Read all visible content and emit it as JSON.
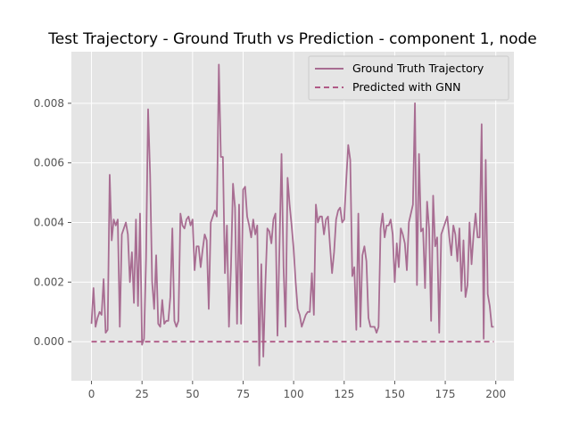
{
  "chart_data": {
    "type": "line",
    "title": "Test Trajectory - Ground Truth vs Prediction - component 1, node",
    "xlabel": "",
    "ylabel": "",
    "xlim": [
      -9.95,
      208.95
    ],
    "ylim": [
      -0.00131,
      0.00973
    ],
    "xticks": [
      0,
      25,
      50,
      75,
      100,
      125,
      150,
      175,
      200
    ],
    "xtick_labels": [
      "0",
      "25",
      "50",
      "75",
      "100",
      "125",
      "150",
      "175",
      "200"
    ],
    "yticks": [
      0,
      0.002,
      0.004,
      0.006,
      0.008
    ],
    "ytick_labels": [
      "0.000",
      "0.002",
      "0.004",
      "0.006",
      "0.008"
    ],
    "grid": true,
    "legend_position": "upper right",
    "colors": {
      "ground_truth": "#a86d92",
      "prediction": "#b05a86",
      "background": "#e5e5e5",
      "grid": "#ffffff"
    },
    "series": [
      {
        "name": "Ground Truth Trajectory",
        "style": "solid",
        "x": [
          0,
          1,
          2,
          3,
          4,
          5,
          6,
          7,
          8,
          9,
          10,
          11,
          12,
          13,
          14,
          15,
          16,
          17,
          18,
          19,
          20,
          21,
          22,
          23,
          24,
          25,
          26,
          27,
          28,
          29,
          30,
          31,
          32,
          33,
          34,
          35,
          36,
          37,
          38,
          39,
          40,
          41,
          42,
          43,
          44,
          45,
          46,
          47,
          48,
          49,
          50,
          51,
          52,
          53,
          54,
          55,
          56,
          57,
          58,
          59,
          60,
          61,
          62,
          63,
          64,
          65,
          66,
          67,
          68,
          69,
          70,
          71,
          72,
          73,
          74,
          75,
          76,
          77,
          78,
          79,
          80,
          81,
          82,
          83,
          84,
          85,
          86,
          87,
          88,
          89,
          90,
          91,
          92,
          93,
          94,
          95,
          96,
          97,
          98,
          99,
          100,
          101,
          102,
          103,
          104,
          105,
          106,
          107,
          108,
          109,
          110,
          111,
          112,
          113,
          114,
          115,
          116,
          117,
          118,
          119,
          120,
          121,
          122,
          123,
          124,
          125,
          126,
          127,
          128,
          129,
          130,
          131,
          132,
          133,
          134,
          135,
          136,
          137,
          138,
          139,
          140,
          141,
          142,
          143,
          144,
          145,
          146,
          147,
          148,
          149,
          150,
          151,
          152,
          153,
          154,
          155,
          156,
          157,
          158,
          159,
          160,
          161,
          162,
          163,
          164,
          165,
          166,
          167,
          168,
          169,
          170,
          171,
          172,
          173,
          174,
          175,
          176,
          177,
          178,
          179,
          180,
          181,
          182,
          183,
          184,
          185,
          186,
          187,
          188,
          189,
          190,
          191,
          192,
          193,
          194,
          195,
          196,
          197,
          198,
          199
        ],
        "values": [
          0.0006,
          0.0018,
          0.0005,
          0.0008,
          0.001,
          0.0009,
          0.0021,
          0.0003,
          0.0004,
          0.0056,
          0.0034,
          0.0041,
          0.0039,
          0.0041,
          0.0005,
          0.0036,
          0.0038,
          0.004,
          0.0036,
          0.002,
          0.003,
          0.0013,
          0.0041,
          0.0012,
          0.0043,
          -0.0001,
          0.0001,
          0.0028,
          0.0078,
          0.0056,
          0.002,
          0.0011,
          0.0029,
          0.0006,
          0.0005,
          0.0014,
          0.0006,
          0.0007,
          0.0007,
          0.0015,
          0.0038,
          0.0007,
          0.0005,
          0.0007,
          0.0043,
          0.0039,
          0.0038,
          0.0041,
          0.0042,
          0.0039,
          0.0041,
          0.0024,
          0.0032,
          0.0032,
          0.0025,
          0.0031,
          0.0036,
          0.0034,
          0.0011,
          0.004,
          0.0042,
          0.0044,
          0.0042,
          0.0093,
          0.0062,
          0.0062,
          0.0023,
          0.0039,
          0.0005,
          0.0025,
          0.0053,
          0.0045,
          0.0006,
          0.0046,
          0.0006,
          0.0051,
          0.0052,
          0.0042,
          0.0039,
          0.0035,
          0.0041,
          0.0036,
          0.0039,
          -0.0008,
          0.0026,
          -0.0005,
          0.0019,
          0.0038,
          0.0037,
          0.0033,
          0.0041,
          0.0043,
          0.0002,
          0.0032,
          0.0063,
          0.0025,
          0.0005,
          0.0055,
          0.0046,
          0.0039,
          0.0031,
          0.002,
          0.0011,
          0.0009,
          0.0005,
          0.0007,
          0.0009,
          0.001,
          0.001,
          0.0023,
          0.0009,
          0.0046,
          0.004,
          0.0042,
          0.0042,
          0.0036,
          0.0041,
          0.0042,
          0.0032,
          0.0023,
          0.003,
          0.0041,
          0.0044,
          0.0045,
          0.004,
          0.0041,
          0.0054,
          0.0066,
          0.0061,
          0.0022,
          0.0025,
          0.0004,
          0.0043,
          0.0005,
          0.0029,
          0.0032,
          0.0027,
          0.0008,
          0.0005,
          0.0005,
          0.0005,
          0.0003,
          0.0005,
          0.0038,
          0.0043,
          0.0035,
          0.0039,
          0.0039,
          0.0041,
          0.0036,
          0.002,
          0.0033,
          0.0025,
          0.0038,
          0.0036,
          0.0033,
          0.0024,
          0.004,
          0.0043,
          0.0046,
          0.008,
          0.0019,
          0.0063,
          0.0037,
          0.0038,
          0.0018,
          0.0047,
          0.0038,
          0.0007,
          0.0049,
          0.0032,
          0.0035,
          0.0003,
          0.0036,
          0.0038,
          0.004,
          0.0042,
          0.0035,
          0.0029,
          0.0039,
          0.0036,
          0.0027,
          0.0038,
          0.0017,
          0.0034,
          0.0015,
          0.0019,
          0.004,
          0.0026,
          0.0036,
          0.0043,
          0.0035,
          0.0035,
          0.0073,
          0.0001,
          0.0061,
          0.0016,
          0.0012,
          0.0005,
          0.0005
        ]
      },
      {
        "name": "Predicted with GNN",
        "style": "dashed",
        "x": [
          0,
          199
        ],
        "values": [
          0,
          0
        ]
      }
    ]
  }
}
